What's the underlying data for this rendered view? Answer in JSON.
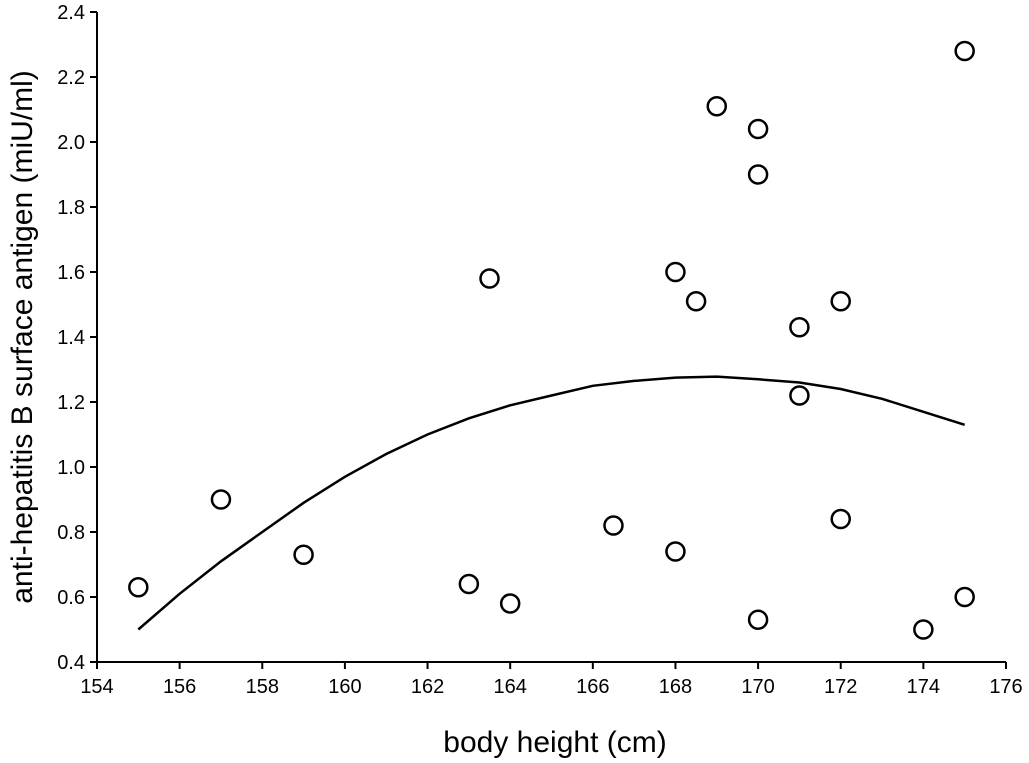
{
  "chart_data": {
    "type": "scatter",
    "xlabel": "body height (cm)",
    "ylabel": "anti-hepatitis B surface antigen (miU/ml)",
    "xlim": [
      154,
      176
    ],
    "ylim": [
      0.4,
      2.4
    ],
    "x_ticks": [
      "154",
      "156",
      "158",
      "160",
      "162",
      "164",
      "166",
      "168",
      "170",
      "172",
      "174",
      "176"
    ],
    "y_ticks": [
      "0.4",
      "0.6",
      "0.8",
      "1.0",
      "1.2",
      "1.4",
      "1.6",
      "1.8",
      "2.0",
      "2.2",
      "2.4"
    ],
    "grid": false,
    "legend": "none",
    "series": [
      {
        "type": "scatter",
        "marker": "open-circle",
        "points": [
          {
            "x": 155,
            "y": 0.63
          },
          {
            "x": 157,
            "y": 0.9
          },
          {
            "x": 159,
            "y": 0.73
          },
          {
            "x": 163,
            "y": 0.64
          },
          {
            "x": 163.5,
            "y": 1.58
          },
          {
            "x": 164,
            "y": 0.58
          },
          {
            "x": 166.5,
            "y": 0.82
          },
          {
            "x": 168,
            "y": 1.6
          },
          {
            "x": 168,
            "y": 0.74
          },
          {
            "x": 168.5,
            "y": 1.51
          },
          {
            "x": 169,
            "y": 2.11
          },
          {
            "x": 170,
            "y": 2.04
          },
          {
            "x": 170,
            "y": 1.9
          },
          {
            "x": 170,
            "y": 0.53
          },
          {
            "x": 171,
            "y": 1.43
          },
          {
            "x": 171,
            "y": 1.22
          },
          {
            "x": 172,
            "y": 1.51
          },
          {
            "x": 172,
            "y": 0.84
          },
          {
            "x": 174,
            "y": 0.5
          },
          {
            "x": 175,
            "y": 2.28
          },
          {
            "x": 175,
            "y": 0.6
          }
        ]
      },
      {
        "type": "line",
        "style": "quadratic-fit",
        "points": [
          {
            "x": 155,
            "y": 0.5
          },
          {
            "x": 156,
            "y": 0.61
          },
          {
            "x": 157,
            "y": 0.71
          },
          {
            "x": 158,
            "y": 0.8
          },
          {
            "x": 159,
            "y": 0.89
          },
          {
            "x": 160,
            "y": 0.97
          },
          {
            "x": 161,
            "y": 1.04
          },
          {
            "x": 162,
            "y": 1.1
          },
          {
            "x": 163,
            "y": 1.15
          },
          {
            "x": 164,
            "y": 1.19
          },
          {
            "x": 165,
            "y": 1.22
          },
          {
            "x": 166,
            "y": 1.25
          },
          {
            "x": 167,
            "y": 1.265
          },
          {
            "x": 168,
            "y": 1.275
          },
          {
            "x": 169,
            "y": 1.278
          },
          {
            "x": 170,
            "y": 1.27
          },
          {
            "x": 171,
            "y": 1.26
          },
          {
            "x": 172,
            "y": 1.24
          },
          {
            "x": 173,
            "y": 1.21
          },
          {
            "x": 174,
            "y": 1.17
          },
          {
            "x": 175,
            "y": 1.13
          }
        ]
      }
    ]
  }
}
